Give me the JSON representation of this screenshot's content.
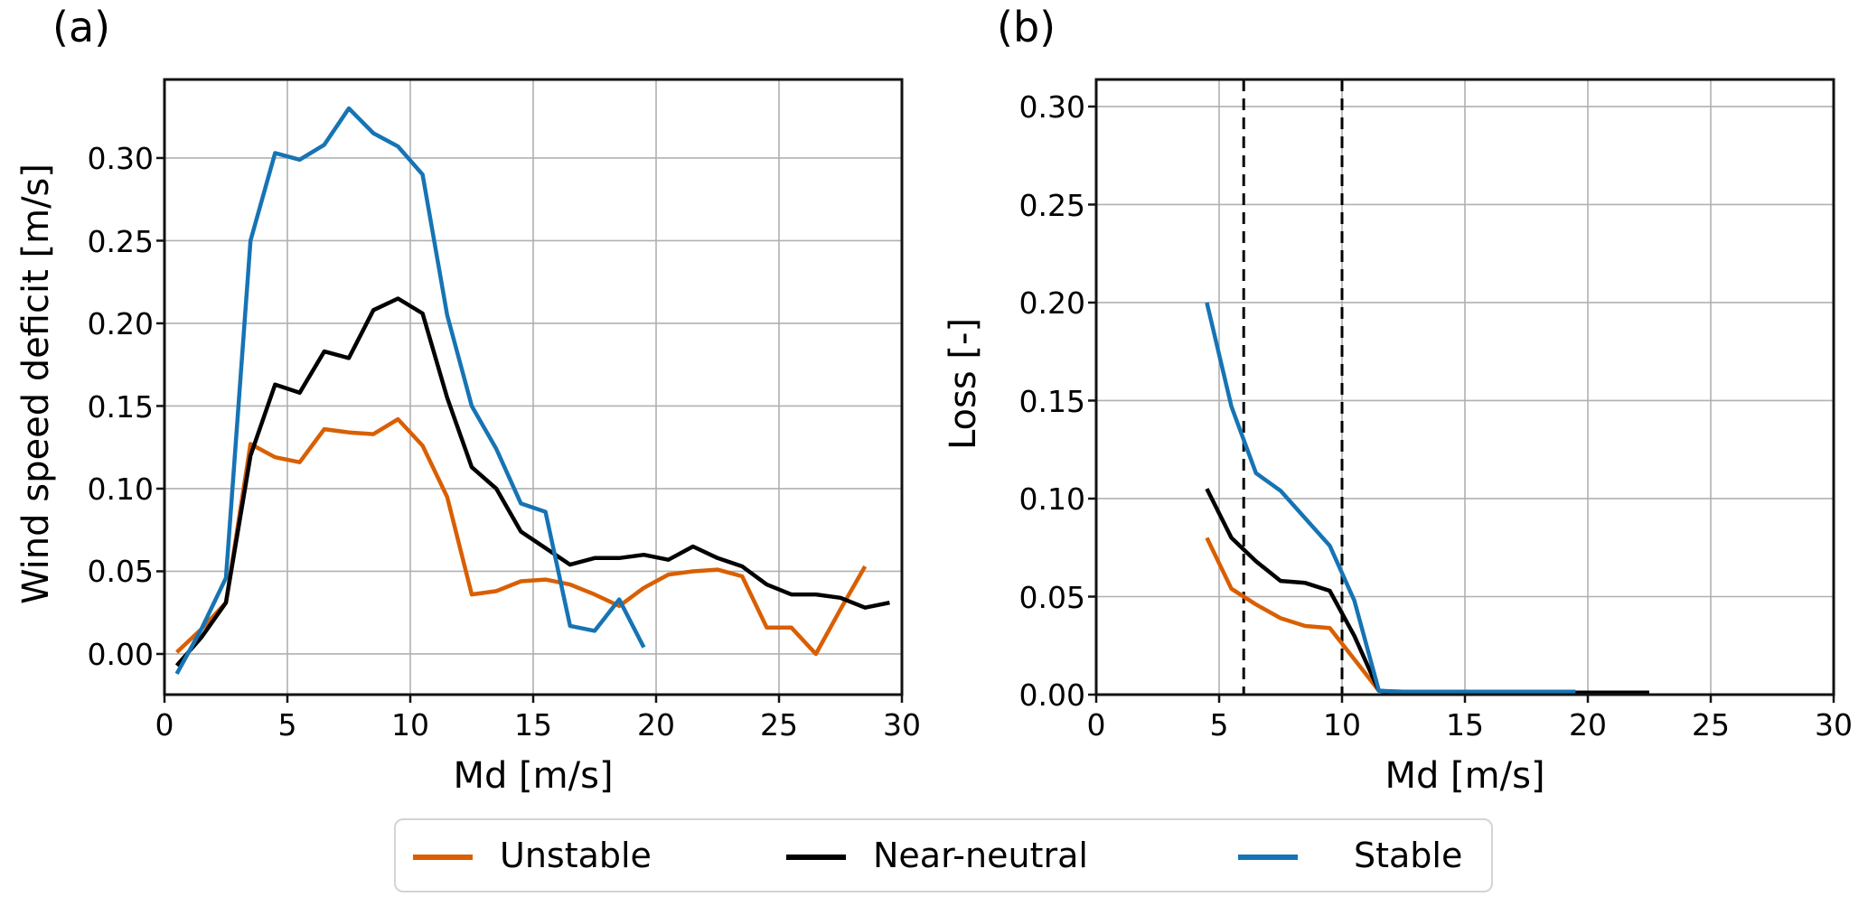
{
  "style": {
    "background": "#ffffff",
    "grid_color": "#b0b0b0",
    "spine_color": "#121212",
    "dashed_line_color": "#000000",
    "unstable_color": "#d95f02",
    "near_neutral_color": "#000000",
    "stable_color": "#1674b4"
  },
  "legend": {
    "entries": [
      {
        "label": "Unstable",
        "color": "#d95f02"
      },
      {
        "label": "Near-neutral",
        "color": "#000000"
      },
      {
        "label": "Stable",
        "color": "#1674b4"
      }
    ]
  },
  "chart_data": [
    {
      "panel": "a",
      "type": "line",
      "title": "(a)",
      "xlabel": "Md [m/s]",
      "ylabel": "Wind speed deficit [m/s]",
      "xlim": [
        0,
        30
      ],
      "ylim": [
        -0.0246,
        0.3475
      ],
      "xticks": [
        0,
        5,
        10,
        15,
        20,
        25,
        30
      ],
      "yticks": [
        0.0,
        0.05,
        0.1,
        0.15,
        0.2,
        0.25,
        0.3
      ],
      "xtick_labels": [
        "0",
        "5",
        "10",
        "15",
        "20",
        "25",
        "30"
      ],
      "ytick_labels": [
        "0.00",
        "0.05",
        "0.10",
        "0.15",
        "0.20",
        "0.25",
        "0.30"
      ],
      "grid": true,
      "series": [
        {
          "name": "Unstable",
          "color": "#d95f02",
          "x": [
            0.5,
            1.5,
            2.5,
            3.5,
            4.5,
            5.5,
            6.5,
            7.5,
            8.5,
            9.5,
            10.5,
            11.5,
            12.5,
            13.5,
            14.5,
            15.5,
            16.5,
            17.5,
            18.5,
            19.5,
            20.5,
            21.5,
            22.5,
            23.5,
            24.5,
            25.5,
            26.5,
            27.5,
            28.5
          ],
          "y": [
            0.001,
            0.015,
            0.031,
            0.127,
            0.119,
            0.116,
            0.136,
            0.134,
            0.133,
            0.142,
            0.126,
            0.095,
            0.036,
            0.038,
            0.044,
            0.045,
            0.042,
            0.036,
            0.029,
            0.04,
            0.048,
            0.05,
            0.051,
            0.047,
            0.016,
            0.016,
            0.0,
            0.027,
            0.053
          ]
        },
        {
          "name": "Near-neutral",
          "color": "#000000",
          "x": [
            0.5,
            1.5,
            2.5,
            3.5,
            4.5,
            5.5,
            6.5,
            7.5,
            8.5,
            9.5,
            10.5,
            11.5,
            12.5,
            13.5,
            14.5,
            15.5,
            16.5,
            17.5,
            18.5,
            19.5,
            20.5,
            21.5,
            22.5,
            23.5,
            24.5,
            25.5,
            26.5,
            27.5,
            28.5,
            29.5
          ],
          "y": [
            -0.007,
            0.01,
            0.031,
            0.12,
            0.163,
            0.158,
            0.183,
            0.179,
            0.208,
            0.215,
            0.206,
            0.155,
            0.113,
            0.1,
            0.074,
            0.064,
            0.054,
            0.058,
            0.058,
            0.06,
            0.057,
            0.065,
            0.058,
            0.053,
            0.042,
            0.036,
            0.036,
            0.034,
            0.028,
            0.031
          ]
        },
        {
          "name": "Stable",
          "color": "#1674b4",
          "x": [
            0.5,
            1.5,
            2.5,
            3.5,
            4.5,
            5.5,
            6.5,
            7.5,
            8.5,
            9.5,
            10.5,
            11.5,
            12.5,
            13.5,
            14.5,
            15.5,
            16.5,
            17.5,
            18.5,
            19.5
          ],
          "y": [
            -0.012,
            0.015,
            0.046,
            0.25,
            0.303,
            0.299,
            0.308,
            0.33,
            0.315,
            0.307,
            0.29,
            0.205,
            0.15,
            0.124,
            0.091,
            0.086,
            0.017,
            0.014,
            0.033,
            0.004
          ]
        }
      ]
    },
    {
      "panel": "b",
      "type": "line",
      "title": "(b)",
      "xlabel": "Md [m/s]",
      "ylabel": "Loss [-]",
      "xlim": [
        0,
        30
      ],
      "ylim": [
        0,
        0.3138
      ],
      "xticks": [
        0,
        5,
        10,
        15,
        20,
        25,
        30
      ],
      "yticks": [
        0.0,
        0.05,
        0.1,
        0.15,
        0.2,
        0.25,
        0.3
      ],
      "xtick_labels": [
        "0",
        "5",
        "10",
        "15",
        "20",
        "25",
        "30"
      ],
      "ytick_labels": [
        "0.00",
        "0.05",
        "0.10",
        "0.15",
        "0.20",
        "0.25",
        "0.30"
      ],
      "grid": true,
      "vlines": [
        6,
        10
      ],
      "series": [
        {
          "name": "Unstable",
          "color": "#d95f02",
          "x": [
            4.5,
            5.5,
            6.5,
            7.5,
            8.5,
            9.5,
            10.5,
            11.5,
            12.5,
            13.5,
            14.5,
            15.5,
            16.5,
            17.5,
            18.5,
            19.5,
            20.5,
            21.5,
            22.5
          ],
          "y": [
            0.08,
            0.054,
            0.046,
            0.039,
            0.035,
            0.034,
            0.018,
            0.002,
            0.001,
            0.001,
            0.001,
            0.001,
            0.001,
            0.001,
            0.001,
            0.001,
            0.001,
            0.001,
            0.001
          ]
        },
        {
          "name": "Near-neutral",
          "color": "#000000",
          "x": [
            4.5,
            5.5,
            6.5,
            7.5,
            8.5,
            9.5,
            10.5,
            11.5,
            12.5,
            13.5,
            14.5,
            15.5,
            16.5,
            17.5,
            18.5,
            19.5,
            20.5,
            21.5,
            22.5
          ],
          "y": [
            0.105,
            0.08,
            0.068,
            0.058,
            0.057,
            0.053,
            0.03,
            0.002,
            0.001,
            0.001,
            0.001,
            0.001,
            0.001,
            0.001,
            0.001,
            0.001,
            0.001,
            0.001,
            0.001
          ]
        },
        {
          "name": "Stable",
          "color": "#1674b4",
          "x": [
            4.5,
            5.5,
            6.5,
            7.5,
            8.5,
            9.5,
            10.5,
            11.5,
            12.5,
            13.5,
            14.5,
            15.5,
            16.5,
            17.5,
            18.5,
            19.5
          ],
          "y": [
            0.2,
            0.147,
            0.113,
            0.104,
            0.09,
            0.076,
            0.048,
            0.002,
            0.0015,
            0.0015,
            0.0015,
            0.0015,
            0.0015,
            0.0015,
            0.0015,
            0.0015
          ]
        }
      ]
    }
  ]
}
